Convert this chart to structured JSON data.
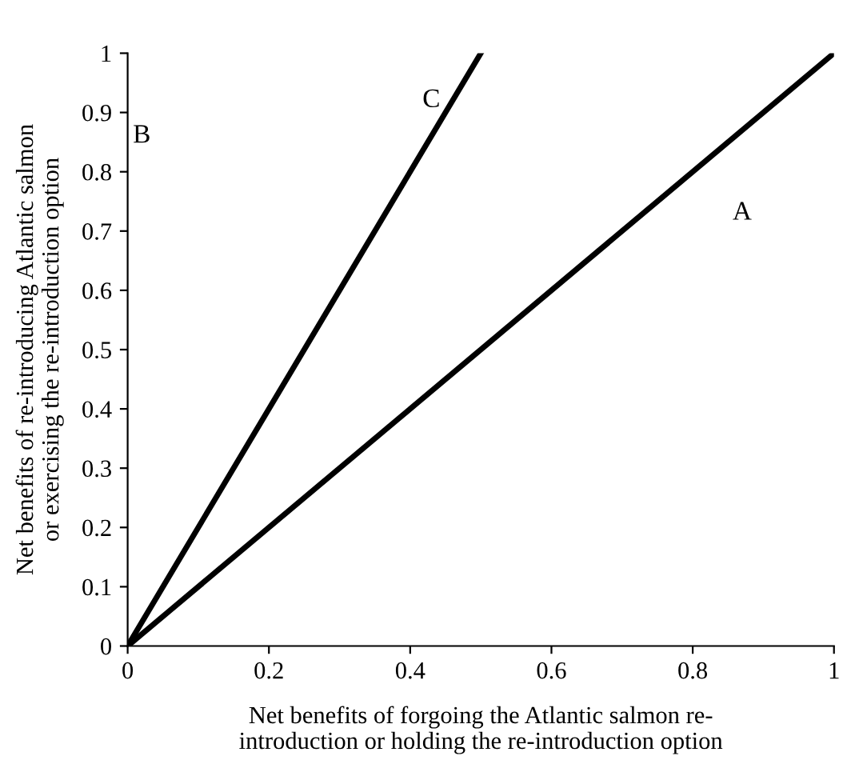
{
  "chart_data": {
    "type": "line",
    "xlabel": "Net benefits of forgoing the Atlantic salmon re-\nintroduction or holding the re-introduction option",
    "ylabel": "Net benefits of re-introducing Atlantic salmon\nor exercising the re-introduction option",
    "series": [
      {
        "color": "#000000",
        "x": [
          0,
          1
        ],
        "values": [
          0,
          1
        ]
      },
      {
        "color": "#000000",
        "x": [
          0,
          0.5
        ],
        "values": [
          0,
          1
        ]
      }
    ],
    "xlim": [
      0,
      1
    ],
    "ylim": [
      0,
      1
    ],
    "xticks": [
      0,
      0.2,
      0.4,
      0.6,
      0.8,
      1
    ],
    "yticks": [
      0,
      0.1,
      0.2,
      0.3,
      0.4,
      0.5,
      0.6,
      0.7,
      0.8,
      0.9,
      1
    ],
    "grid": false,
    "marker": "none",
    "line_style": "solid",
    "annotations": [
      "A",
      "B",
      "C"
    ]
  }
}
